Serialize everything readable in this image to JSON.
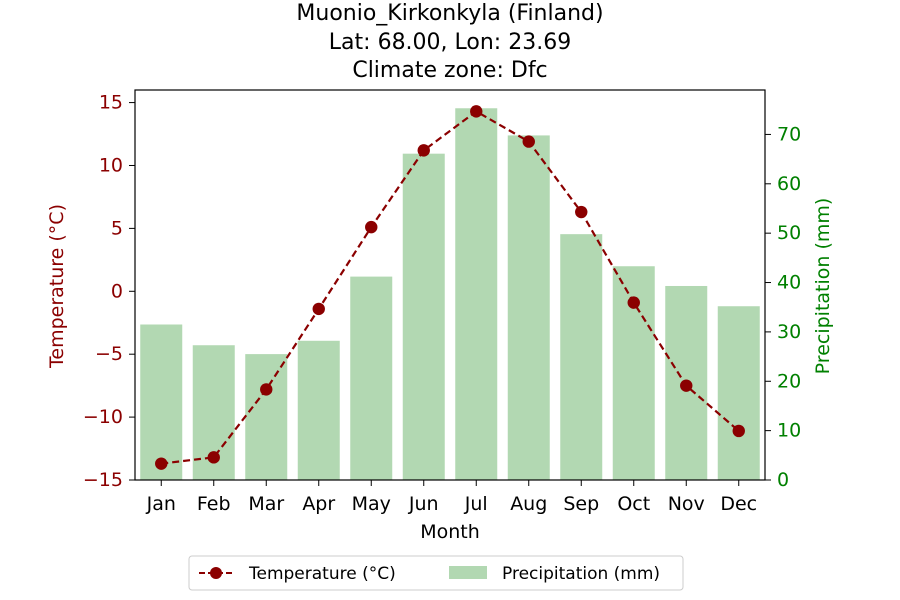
{
  "chart_data": {
    "type": "bar+line",
    "title_lines": [
      "Muonio_Kirkonkyla (Finland)",
      "Lat: 68.00, Lon: 23.69",
      "Climate zone: Dfc"
    ],
    "xlabel": "Month",
    "ylabel_left": "Temperature (°C)",
    "ylabel_right": "Precipitation (mm)",
    "categories": [
      "Jan",
      "Feb",
      "Mar",
      "Apr",
      "May",
      "Jun",
      "Jul",
      "Aug",
      "Sep",
      "Oct",
      "Nov",
      "Dec"
    ],
    "temperature": {
      "name": "Temperature (°C)",
      "values": [
        -13.7,
        -13.2,
        -7.8,
        -1.4,
        5.1,
        11.2,
        14.3,
        11.9,
        6.3,
        -0.9,
        -7.5,
        -11.1
      ],
      "color": "#8b0000",
      "line_style": "dashed",
      "marker": "circle"
    },
    "precipitation": {
      "name": "Precipitation (mm)",
      "values": [
        31.5,
        27.3,
        25.5,
        28.2,
        41.2,
        66.1,
        75.3,
        69.8,
        49.8,
        43.3,
        39.3,
        35.2
      ],
      "color": "#b2d8b2"
    },
    "ylim_left": [
      -15,
      16
    ],
    "yticks_left": [
      -15,
      -10,
      -5,
      0,
      5,
      10,
      15
    ],
    "ylim_right": [
      0,
      79
    ],
    "yticks_right": [
      0,
      10,
      20,
      30,
      40,
      50,
      60,
      70
    ],
    "left_axis_color": "#8b0000",
    "right_axis_color": "#008000",
    "grid": false,
    "legend_placement": "bottom-center"
  }
}
